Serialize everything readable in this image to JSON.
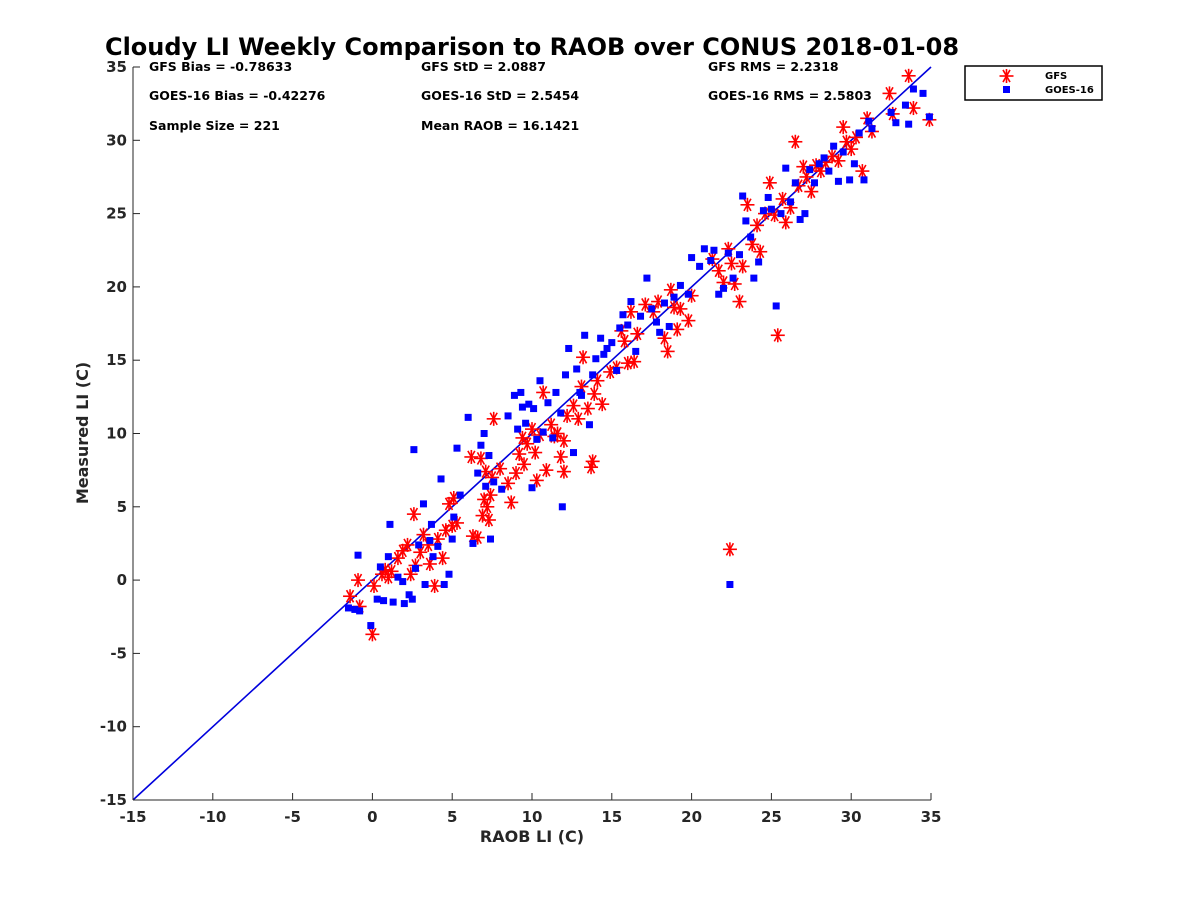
{
  "chart_data": {
    "type": "scatter",
    "title": "Cloudy LI Weekly Comparison to RAOB over CONUS 2018-01-08",
    "xlabel": "RAOB LI (C)",
    "ylabel": "Measured LI (C)",
    "xlim": [
      -15,
      35
    ],
    "ylim": [
      -15,
      35
    ],
    "x_ticks": [
      "-15",
      "-10",
      "-5",
      "0",
      "5",
      "10",
      "15",
      "20",
      "25",
      "30",
      "35"
    ],
    "y_ticks": [
      "-15",
      "-10",
      "-5",
      "0",
      "5",
      "10",
      "15",
      "20",
      "25",
      "30",
      "35"
    ],
    "grid": false,
    "legend_position": "outside-top-right",
    "reference_line": {
      "from": [
        -15,
        -15
      ],
      "to": [
        35,
        35
      ],
      "color": "#0000dd"
    },
    "stats": {
      "gfs_bias": "GFS Bias = -0.78633",
      "gfs_std": "GFS StD = 2.0887",
      "gfs_rms": "GFS RMS = 2.2318",
      "goes_bias": "GOES-16 Bias = -0.42276",
      "goes_std": "GOES-16 StD = 2.5454",
      "goes_rms": "GOES-16 RMS = 2.5803",
      "sample_size": "Sample Size = 221",
      "mean_raob": "Mean RAOB = 16.1421"
    },
    "series": [
      {
        "name": "GFS",
        "marker": "asterisk",
        "color": "#ff0000",
        "points": [
          [
            -1.4,
            -1.1
          ],
          [
            -0.9,
            0.0
          ],
          [
            -0.8,
            -1.8
          ],
          [
            0.0,
            -3.7
          ],
          [
            0.1,
            -0.4
          ],
          [
            0.6,
            0.4
          ],
          [
            0.8,
            0.7
          ],
          [
            1.0,
            0.2
          ],
          [
            1.2,
            0.6
          ],
          [
            1.6,
            1.5
          ],
          [
            1.9,
            2.0
          ],
          [
            2.2,
            2.4
          ],
          [
            2.4,
            0.4
          ],
          [
            2.6,
            4.5
          ],
          [
            2.7,
            1.0
          ],
          [
            3.0,
            1.9
          ],
          [
            3.2,
            3.1
          ],
          [
            3.5,
            2.4
          ],
          [
            3.6,
            1.1
          ],
          [
            3.9,
            -0.4
          ],
          [
            4.1,
            2.8
          ],
          [
            4.4,
            1.5
          ],
          [
            4.6,
            3.4
          ],
          [
            4.8,
            5.2
          ],
          [
            5.0,
            3.7
          ],
          [
            5.1,
            5.6
          ],
          [
            5.3,
            3.9
          ],
          [
            6.2,
            8.4
          ],
          [
            6.3,
            3.0
          ],
          [
            6.6,
            2.9
          ],
          [
            6.8,
            8.3
          ],
          [
            6.9,
            4.4
          ],
          [
            7.0,
            5.5
          ],
          [
            7.1,
            7.4
          ],
          [
            7.2,
            5.0
          ],
          [
            7.3,
            4.1
          ],
          [
            7.4,
            5.8
          ],
          [
            7.5,
            7.0
          ],
          [
            7.6,
            11.0
          ],
          [
            8.0,
            7.6
          ],
          [
            8.5,
            6.6
          ],
          [
            8.7,
            5.3
          ],
          [
            9.0,
            7.3
          ],
          [
            9.2,
            8.6
          ],
          [
            9.4,
            9.7
          ],
          [
            9.5,
            7.9
          ],
          [
            9.7,
            9.3
          ],
          [
            10.0,
            10.3
          ],
          [
            10.2,
            8.7
          ],
          [
            10.3,
            6.8
          ],
          [
            10.5,
            9.9
          ],
          [
            10.7,
            12.8
          ],
          [
            10.9,
            7.5
          ],
          [
            11.2,
            10.6
          ],
          [
            11.4,
            9.8
          ],
          [
            11.6,
            10.0
          ],
          [
            11.8,
            8.4
          ],
          [
            12.0,
            9.5
          ],
          [
            12.0,
            7.4
          ],
          [
            12.2,
            11.2
          ],
          [
            12.6,
            11.9
          ],
          [
            12.9,
            11.0
          ],
          [
            13.1,
            13.2
          ],
          [
            13.2,
            15.2
          ],
          [
            13.5,
            11.7
          ],
          [
            13.7,
            7.7
          ],
          [
            13.8,
            8.1
          ],
          [
            13.9,
            12.7
          ],
          [
            14.1,
            13.6
          ],
          [
            14.4,
            12.0
          ],
          [
            14.9,
            14.2
          ],
          [
            15.3,
            14.5
          ],
          [
            15.6,
            17.0
          ],
          [
            15.8,
            16.3
          ],
          [
            16.0,
            14.8
          ],
          [
            16.2,
            18.3
          ],
          [
            16.4,
            14.9
          ],
          [
            16.6,
            16.8
          ],
          [
            17.1,
            18.8
          ],
          [
            17.6,
            18.3
          ],
          [
            17.9,
            19.0
          ],
          [
            18.3,
            16.5
          ],
          [
            18.5,
            15.6
          ],
          [
            18.7,
            19.8
          ],
          [
            18.9,
            18.6
          ],
          [
            19.1,
            17.1
          ],
          [
            19.3,
            18.5
          ],
          [
            19.8,
            17.7
          ],
          [
            20.0,
            19.4
          ],
          [
            21.3,
            21.9
          ],
          [
            21.7,
            21.1
          ],
          [
            22.0,
            20.3
          ],
          [
            22.3,
            22.6
          ],
          [
            22.5,
            21.6
          ],
          [
            22.7,
            20.2
          ],
          [
            22.4,
            2.1
          ],
          [
            23.0,
            19.0
          ],
          [
            23.2,
            21.4
          ],
          [
            23.5,
            25.6
          ],
          [
            23.8,
            22.9
          ],
          [
            24.1,
            24.2
          ],
          [
            24.3,
            22.4
          ],
          [
            24.6,
            25.0
          ],
          [
            24.9,
            27.1
          ],
          [
            25.2,
            24.9
          ],
          [
            25.4,
            16.7
          ],
          [
            25.7,
            26.0
          ],
          [
            25.9,
            24.4
          ],
          [
            26.2,
            25.4
          ],
          [
            26.5,
            29.9
          ],
          [
            26.7,
            26.9
          ],
          [
            27.0,
            28.2
          ],
          [
            27.2,
            27.5
          ],
          [
            27.5,
            26.5
          ],
          [
            27.8,
            28.3
          ],
          [
            28.1,
            27.9
          ],
          [
            28.4,
            28.5
          ],
          [
            28.8,
            28.9
          ],
          [
            29.2,
            28.6
          ],
          [
            29.5,
            30.9
          ],
          [
            29.7,
            29.9
          ],
          [
            30.0,
            29.4
          ],
          [
            30.3,
            30.2
          ],
          [
            30.7,
            27.9
          ],
          [
            31.0,
            31.5
          ],
          [
            31.3,
            30.6
          ],
          [
            32.4,
            33.2
          ],
          [
            32.6,
            31.8
          ],
          [
            33.6,
            34.4
          ],
          [
            33.9,
            32.2
          ],
          [
            34.9,
            31.4
          ]
        ]
      },
      {
        "name": "GOES-16",
        "marker": "square",
        "color": "#0000ff",
        "points": [
          [
            -1.5,
            -1.9
          ],
          [
            -1.1,
            -2.0
          ],
          [
            -0.9,
            1.7
          ],
          [
            -0.8,
            -2.1
          ],
          [
            -0.1,
            -3.1
          ],
          [
            0.3,
            -1.3
          ],
          [
            0.5,
            0.9
          ],
          [
            0.7,
            -1.4
          ],
          [
            1.0,
            1.6
          ],
          [
            1.1,
            3.8
          ],
          [
            1.3,
            -1.5
          ],
          [
            1.6,
            0.2
          ],
          [
            1.9,
            -0.1
          ],
          [
            2.0,
            -1.6
          ],
          [
            2.3,
            -1.0
          ],
          [
            2.5,
            -1.3
          ],
          [
            2.7,
            0.8
          ],
          [
            2.6,
            8.9
          ],
          [
            2.9,
            2.4
          ],
          [
            3.2,
            5.2
          ],
          [
            3.3,
            -0.3
          ],
          [
            3.6,
            2.7
          ],
          [
            3.7,
            3.8
          ],
          [
            3.8,
            1.6
          ],
          [
            4.1,
            2.3
          ],
          [
            4.3,
            6.9
          ],
          [
            4.5,
            -0.3
          ],
          [
            4.8,
            0.4
          ],
          [
            5.0,
            2.8
          ],
          [
            5.1,
            4.3
          ],
          [
            5.3,
            9.0
          ],
          [
            5.5,
            5.8
          ],
          [
            6.0,
            11.1
          ],
          [
            6.3,
            2.5
          ],
          [
            6.6,
            7.3
          ],
          [
            6.8,
            9.2
          ],
          [
            7.0,
            10.0
          ],
          [
            7.1,
            6.4
          ],
          [
            7.3,
            8.5
          ],
          [
            7.4,
            2.8
          ],
          [
            7.6,
            6.7
          ],
          [
            8.1,
            6.2
          ],
          [
            8.5,
            11.2
          ],
          [
            8.9,
            12.6
          ],
          [
            9.1,
            10.3
          ],
          [
            9.3,
            12.8
          ],
          [
            9.4,
            11.8
          ],
          [
            9.6,
            10.7
          ],
          [
            9.8,
            12.0
          ],
          [
            10.0,
            6.3
          ],
          [
            10.1,
            11.7
          ],
          [
            10.3,
            9.6
          ],
          [
            10.5,
            13.6
          ],
          [
            10.7,
            10.1
          ],
          [
            11.0,
            12.1
          ],
          [
            11.3,
            9.7
          ],
          [
            11.5,
            12.8
          ],
          [
            11.8,
            11.4
          ],
          [
            11.9,
            5.0
          ],
          [
            12.1,
            14.0
          ],
          [
            12.3,
            15.8
          ],
          [
            12.6,
            8.7
          ],
          [
            12.8,
            14.4
          ],
          [
            13.0,
            12.8
          ],
          [
            13.1,
            12.6
          ],
          [
            13.3,
            16.7
          ],
          [
            13.6,
            10.6
          ],
          [
            13.8,
            14.0
          ],
          [
            14.0,
            15.1
          ],
          [
            14.3,
            16.5
          ],
          [
            14.5,
            15.4
          ],
          [
            14.7,
            15.8
          ],
          [
            15.0,
            16.2
          ],
          [
            15.3,
            14.3
          ],
          [
            15.5,
            17.2
          ],
          [
            15.7,
            18.1
          ],
          [
            16.0,
            17.4
          ],
          [
            16.2,
            19.0
          ],
          [
            16.5,
            15.6
          ],
          [
            16.8,
            18.0
          ],
          [
            17.2,
            20.6
          ],
          [
            17.5,
            18.5
          ],
          [
            17.8,
            17.6
          ],
          [
            18.0,
            16.9
          ],
          [
            18.3,
            18.9
          ],
          [
            18.6,
            17.3
          ],
          [
            18.9,
            19.3
          ],
          [
            19.3,
            20.1
          ],
          [
            19.8,
            19.5
          ],
          [
            20.0,
            22.0
          ],
          [
            20.5,
            21.4
          ],
          [
            20.8,
            22.6
          ],
          [
            21.2,
            21.8
          ],
          [
            21.4,
            22.5
          ],
          [
            21.7,
            19.5
          ],
          [
            22.0,
            19.9
          ],
          [
            22.3,
            22.3
          ],
          [
            22.6,
            20.6
          ],
          [
            22.4,
            -0.3
          ],
          [
            23.0,
            22.2
          ],
          [
            23.2,
            26.2
          ],
          [
            23.4,
            24.5
          ],
          [
            23.7,
            23.4
          ],
          [
            23.9,
            20.6
          ],
          [
            24.2,
            21.7
          ],
          [
            24.5,
            25.2
          ],
          [
            24.8,
            26.1
          ],
          [
            25.0,
            25.3
          ],
          [
            25.3,
            18.7
          ],
          [
            25.6,
            25.0
          ],
          [
            25.9,
            28.1
          ],
          [
            26.2,
            25.8
          ],
          [
            26.5,
            27.1
          ],
          [
            26.8,
            24.6
          ],
          [
            27.1,
            25.0
          ],
          [
            27.4,
            28.0
          ],
          [
            27.7,
            27.1
          ],
          [
            28.0,
            28.4
          ],
          [
            28.3,
            28.8
          ],
          [
            28.6,
            27.9
          ],
          [
            28.9,
            29.6
          ],
          [
            29.2,
            27.2
          ],
          [
            29.5,
            29.2
          ],
          [
            29.9,
            27.3
          ],
          [
            30.2,
            28.4
          ],
          [
            30.5,
            30.5
          ],
          [
            30.8,
            27.3
          ],
          [
            31.1,
            31.3
          ],
          [
            31.3,
            30.8
          ],
          [
            32.5,
            31.9
          ],
          [
            32.8,
            31.2
          ],
          [
            33.4,
            32.4
          ],
          [
            33.6,
            31.1
          ],
          [
            33.9,
            33.5
          ],
          [
            34.5,
            33.2
          ],
          [
            34.9,
            31.6
          ]
        ]
      }
    ]
  }
}
